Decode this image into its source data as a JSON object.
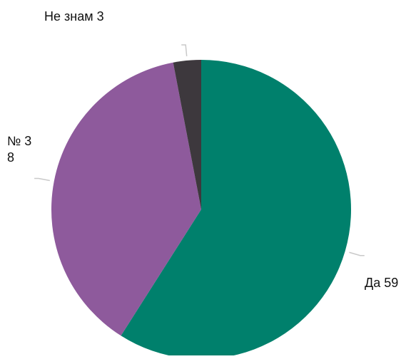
{
  "chart_data": {
    "type": "pie",
    "title": "",
    "slices": [
      {
        "label": "Да 59",
        "name": "Да",
        "value": 59,
        "color": "#00806c"
      },
      {
        "label": "№ 3\n8",
        "name": "№",
        "value": 38,
        "color": "#8e5a9c"
      },
      {
        "label": "Не знам 3",
        "name": "Не знам",
        "value": 3,
        "color": "#3d383d"
      }
    ],
    "start_angle_deg": 0,
    "direction": "clockwise",
    "leader_color": "#c9c9c9"
  }
}
